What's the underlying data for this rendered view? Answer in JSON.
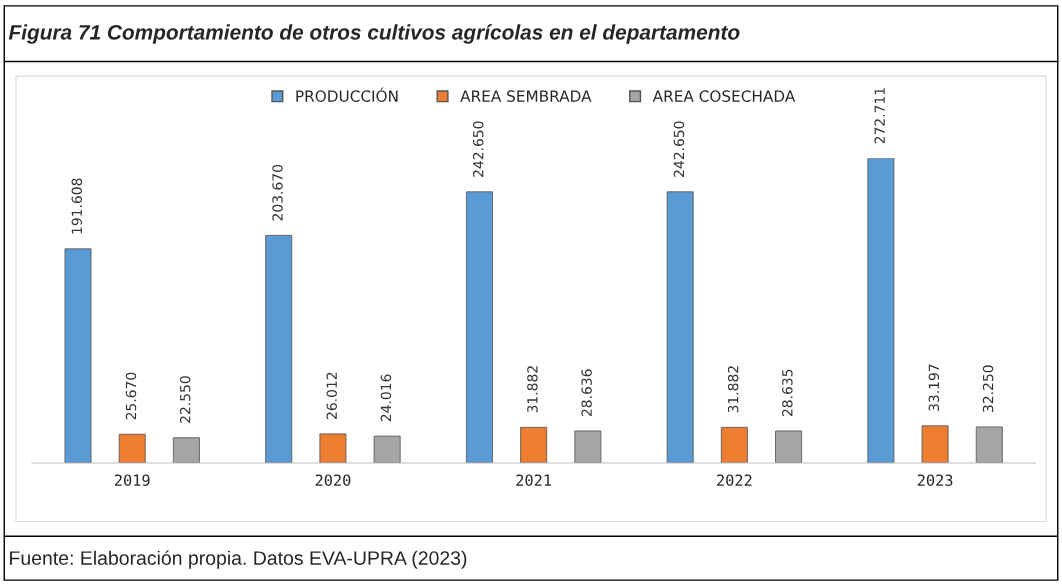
{
  "chart_data": {
    "type": "bar",
    "title": "Figura 71 Comportamiento de otros cultivos agrícolas en el departamento",
    "categories": [
      "2019",
      "2020",
      "2021",
      "2022",
      "2023"
    ],
    "series": [
      {
        "name": "PRODUCCIÓN",
        "color": "#5b9bd5",
        "values": [
          191608,
          203670,
          242650,
          242650,
          272711
        ],
        "value_labels": [
          "191.608",
          "203.670",
          "242.650",
          "242.650",
          "272.711"
        ]
      },
      {
        "name": "AREA SEMBRADA",
        "color": "#ed7d31",
        "values": [
          25670,
          26012,
          31882,
          31882,
          33197
        ],
        "value_labels": [
          "25.670",
          "26.012",
          "31.882",
          "31.882",
          "33.197"
        ]
      },
      {
        "name": "AREA COSECHADA",
        "color": "#a5a5a5",
        "values": [
          22550,
          24016,
          28636,
          28635,
          32250
        ],
        "value_labels": [
          "22.550",
          "24.016",
          "28.636",
          "28.635",
          "32.250"
        ]
      }
    ],
    "legend": "top",
    "grid": false,
    "annotations": [
      "Fuente: Elaboración propia. Datos EVA-UPRA (2023)"
    ]
  }
}
